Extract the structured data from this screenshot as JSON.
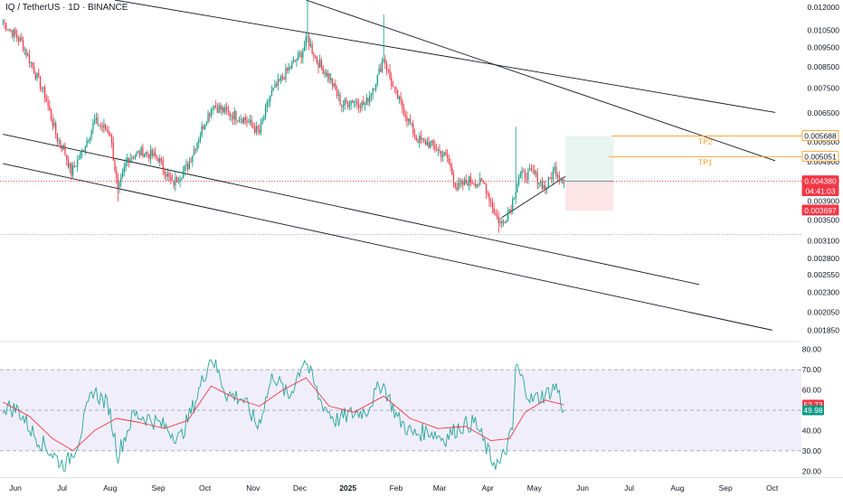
{
  "header": {
    "title": "IQ / TetherUS · 1D · BINANCE"
  },
  "colors": {
    "up": "#089981",
    "down": "#f23645",
    "tp_line": "#f59d1e",
    "rsi_line": "#26a69a",
    "rsi_ma": "#f23645",
    "rsi_band": "#f1eefb",
    "target_zone": "#e8f5f1",
    "stop_zone": "#fde6e8",
    "channel": "#131722"
  },
  "chart_data": [
    {
      "type": "candlestick",
      "title": "IQ / TetherUS · 1D · BINANCE",
      "series_name": "IQ/USDT",
      "x_ticks": [
        "Jun",
        "Jul",
        "Aug",
        "Sep",
        "Oct",
        "Nov",
        "Dec",
        "2025",
        "Feb",
        "Mar",
        "Apr",
        "May",
        "Jun",
        "Jul",
        "Aug",
        "Sep",
        "Oct"
      ],
      "y_ticks": [
        "0.012000",
        "0.010500",
        "0.009500",
        "0.008500",
        "0.007500",
        "0.006500",
        "0.005500",
        "0.004900",
        "0.004380",
        "0.003900",
        "0.003500",
        "0.003100",
        "0.002800",
        "0.002550",
        "0.002300",
        "0.002050",
        "0.001850"
      ],
      "ylim": [
        0.00175,
        0.0125
      ],
      "log_scale": true,
      "close_path": [
        {
          "date": "2024-05-24",
          "close": 0.011
        },
        {
          "date": "2024-06-05",
          "close": 0.0098
        },
        {
          "date": "2024-06-12",
          "close": 0.0085
        },
        {
          "date": "2024-06-20",
          "close": 0.0072
        },
        {
          "date": "2024-06-28",
          "close": 0.0056
        },
        {
          "date": "2024-07-02",
          "close": 0.0053
        },
        {
          "date": "2024-07-07",
          "close": 0.0046
        },
        {
          "date": "2024-07-14",
          "close": 0.0052
        },
        {
          "date": "2024-07-22",
          "close": 0.0062
        },
        {
          "date": "2024-08-01",
          "close": 0.0058
        },
        {
          "date": "2024-08-06",
          "close": 0.0041
        },
        {
          "date": "2024-08-12",
          "close": 0.005
        },
        {
          "date": "2024-08-22",
          "close": 0.0052
        },
        {
          "date": "2024-09-01",
          "close": 0.005
        },
        {
          "date": "2024-09-10",
          "close": 0.0043
        },
        {
          "date": "2024-09-20",
          "close": 0.0048
        },
        {
          "date": "2024-10-01",
          "close": 0.0062
        },
        {
          "date": "2024-10-06",
          "close": 0.0068
        },
        {
          "date": "2024-10-16",
          "close": 0.0065
        },
        {
          "date": "2024-10-26",
          "close": 0.0063
        },
        {
          "date": "2024-11-05",
          "close": 0.0058
        },
        {
          "date": "2024-11-12",
          "close": 0.0072
        },
        {
          "date": "2024-11-22",
          "close": 0.0082
        },
        {
          "date": "2024-12-02",
          "close": 0.0092
        },
        {
          "date": "2024-12-06",
          "close": 0.01
        },
        {
          "date": "2024-12-12",
          "close": 0.0088
        },
        {
          "date": "2024-12-20",
          "close": 0.008
        },
        {
          "date": "2024-12-28",
          "close": 0.0068
        },
        {
          "date": "2025-01-04",
          "close": 0.007
        },
        {
          "date": "2025-01-12",
          "close": 0.0068
        },
        {
          "date": "2025-01-20",
          "close": 0.008
        },
        {
          "date": "2025-01-24",
          "close": 0.009
        },
        {
          "date": "2025-01-30",
          "close": 0.0075
        },
        {
          "date": "2025-02-06",
          "close": 0.0066
        },
        {
          "date": "2025-02-14",
          "close": 0.0056
        },
        {
          "date": "2025-02-24",
          "close": 0.0054
        },
        {
          "date": "2025-03-06",
          "close": 0.005
        },
        {
          "date": "2025-03-12",
          "close": 0.0042
        },
        {
          "date": "2025-03-20",
          "close": 0.0044
        },
        {
          "date": "2025-03-30",
          "close": 0.0043
        },
        {
          "date": "2025-04-06",
          "close": 0.0036
        },
        {
          "date": "2025-04-10",
          "close": 0.0034
        },
        {
          "date": "2025-04-16",
          "close": 0.0038
        },
        {
          "date": "2025-04-21",
          "close": 0.0045
        },
        {
          "date": "2025-04-30",
          "close": 0.0046
        },
        {
          "date": "2025-05-08",
          "close": 0.0042
        },
        {
          "date": "2025-05-14",
          "close": 0.0047
        },
        {
          "date": "2025-05-20",
          "close": 0.0044
        }
      ],
      "wicks": [
        {
          "date": "2024-08-06",
          "low": 0.0039
        },
        {
          "date": "2024-12-06",
          "high": 0.0125
        },
        {
          "date": "2025-01-24",
          "high": 0.0115
        },
        {
          "date": "2025-04-08",
          "low": 0.00325
        },
        {
          "date": "2025-04-19",
          "high": 0.006
        }
      ],
      "price_tags": [
        {
          "label": "0.005688",
          "price": 0.005688,
          "style": "tp"
        },
        {
          "label": "0.005051",
          "price": 0.005051,
          "style": "tp"
        },
        {
          "label": "0.004380",
          "price": 0.00438,
          "style": "last"
        },
        {
          "label": "04:41:03",
          "price": 0.00425,
          "style": "timer"
        },
        {
          "label": "0.003697",
          "price": 0.003697,
          "style": "stop"
        }
      ],
      "annotations": [
        {
          "label": "TP2",
          "price": 0.005688
        },
        {
          "label": "TP1",
          "price": 0.005051
        }
      ],
      "position": {
        "entry": 0.00438,
        "target": 0.005688,
        "stop": 0.003697,
        "start_date": "2025-05-21",
        "end_date": "2025-06-21"
      },
      "horizontal_levels": [
        0.00438,
        0.00322
      ],
      "channels": [
        {
          "from": {
            "date": "2024-08-04",
            "price": 0.0125
          },
          "to": {
            "date": "2025-10-03",
            "price": 0.00652
          }
        },
        {
          "from": {
            "date": "2024-12-05",
            "price": 0.0125
          },
          "to": {
            "date": "2025-10-03",
            "price": 0.00493
          }
        },
        {
          "from": {
            "date": "2024-05-24",
            "price": 0.00575
          },
          "to": {
            "date": "2025-08-15",
            "price": 0.00241
          }
        },
        {
          "from": {
            "date": "2024-05-24",
            "price": 0.00485
          },
          "to": {
            "date": "2025-10-01",
            "price": 0.00185
          }
        },
        {
          "from": {
            "date": "2025-04-10",
            "price": 0.00355
          },
          "to": {
            "date": "2025-06-01",
            "price": 0.0048
          }
        }
      ]
    },
    {
      "type": "line",
      "title": "",
      "y_ticks": [
        "80.00",
        "70.00",
        "60.00",
        "50.00",
        "40.00",
        "30.00",
        "20.00"
      ],
      "ylim": [
        17,
        83
      ],
      "bands": [
        30,
        50,
        70
      ],
      "last_values": [
        {
          "label": "52.73",
          "value": 52.73,
          "color": "#f23645"
        },
        {
          "label": "49.98",
          "value": 49.98,
          "color": "#089981"
        }
      ],
      "series": [
        {
          "values": [
            {
              "date": "2024-05-24",
              "value": 52
            },
            {
              "date": "2024-06-03",
              "value": 50
            },
            {
              "date": "2024-06-13",
              "value": 38
            },
            {
              "date": "2024-06-23",
              "value": 30
            },
            {
              "date": "2024-07-03",
              "value": 22
            },
            {
              "date": "2024-07-11",
              "value": 34
            },
            {
              "date": "2024-07-21",
              "value": 60
            },
            {
              "date": "2024-07-31",
              "value": 52
            },
            {
              "date": "2024-08-06",
              "value": 28
            },
            {
              "date": "2024-08-16",
              "value": 48
            },
            {
              "date": "2024-08-26",
              "value": 46
            },
            {
              "date": "2024-09-05",
              "value": 42
            },
            {
              "date": "2024-09-15",
              "value": 36
            },
            {
              "date": "2024-09-25",
              "value": 55
            },
            {
              "date": "2024-10-05",
              "value": 77
            },
            {
              "date": "2024-10-15",
              "value": 58
            },
            {
              "date": "2024-10-25",
              "value": 56
            },
            {
              "date": "2024-11-04",
              "value": 42
            },
            {
              "date": "2024-11-14",
              "value": 68
            },
            {
              "date": "2024-11-24",
              "value": 56
            },
            {
              "date": "2024-12-04",
              "value": 76
            },
            {
              "date": "2024-12-14",
              "value": 55
            },
            {
              "date": "2024-12-24",
              "value": 45
            },
            {
              "date": "2025-01-03",
              "value": 48
            },
            {
              "date": "2025-01-13",
              "value": 50
            },
            {
              "date": "2025-01-23",
              "value": 64
            },
            {
              "date": "2025-02-02",
              "value": 46
            },
            {
              "date": "2025-02-12",
              "value": 38
            },
            {
              "date": "2025-02-22",
              "value": 40
            },
            {
              "date": "2025-03-04",
              "value": 36
            },
            {
              "date": "2025-03-14",
              "value": 42
            },
            {
              "date": "2025-03-24",
              "value": 44
            },
            {
              "date": "2025-04-03",
              "value": 26
            },
            {
              "date": "2025-04-09",
              "value": 23
            },
            {
              "date": "2025-04-17",
              "value": 40
            },
            {
              "date": "2025-04-19",
              "value": 72
            },
            {
              "date": "2025-04-29",
              "value": 55
            },
            {
              "date": "2025-05-09",
              "value": 58
            },
            {
              "date": "2025-05-15",
              "value": 62
            },
            {
              "date": "2025-05-20",
              "value": 50
            }
          ]
        },
        {
          "values": [
            {
              "date": "2024-05-24",
              "value": 54
            },
            {
              "date": "2024-06-10",
              "value": 47
            },
            {
              "date": "2024-06-25",
              "value": 36
            },
            {
              "date": "2024-07-08",
              "value": 30
            },
            {
              "date": "2024-07-22",
              "value": 40
            },
            {
              "date": "2024-08-05",
              "value": 46
            },
            {
              "date": "2024-08-20",
              "value": 44
            },
            {
              "date": "2024-09-05",
              "value": 41
            },
            {
              "date": "2024-09-20",
              "value": 45
            },
            {
              "date": "2024-10-05",
              "value": 62
            },
            {
              "date": "2024-10-20",
              "value": 56
            },
            {
              "date": "2024-11-05",
              "value": 52
            },
            {
              "date": "2024-11-20",
              "value": 60
            },
            {
              "date": "2024-12-05",
              "value": 66
            },
            {
              "date": "2024-12-20",
              "value": 52
            },
            {
              "date": "2025-01-05",
              "value": 49
            },
            {
              "date": "2025-01-24",
              "value": 57
            },
            {
              "date": "2025-02-10",
              "value": 46
            },
            {
              "date": "2025-02-28",
              "value": 41
            },
            {
              "date": "2025-03-18",
              "value": 42
            },
            {
              "date": "2025-04-03",
              "value": 35
            },
            {
              "date": "2025-04-15",
              "value": 36
            },
            {
              "date": "2025-04-25",
              "value": 49
            },
            {
              "date": "2025-05-08",
              "value": 55
            },
            {
              "date": "2025-05-20",
              "value": 52.7
            }
          ]
        }
      ]
    }
  ]
}
